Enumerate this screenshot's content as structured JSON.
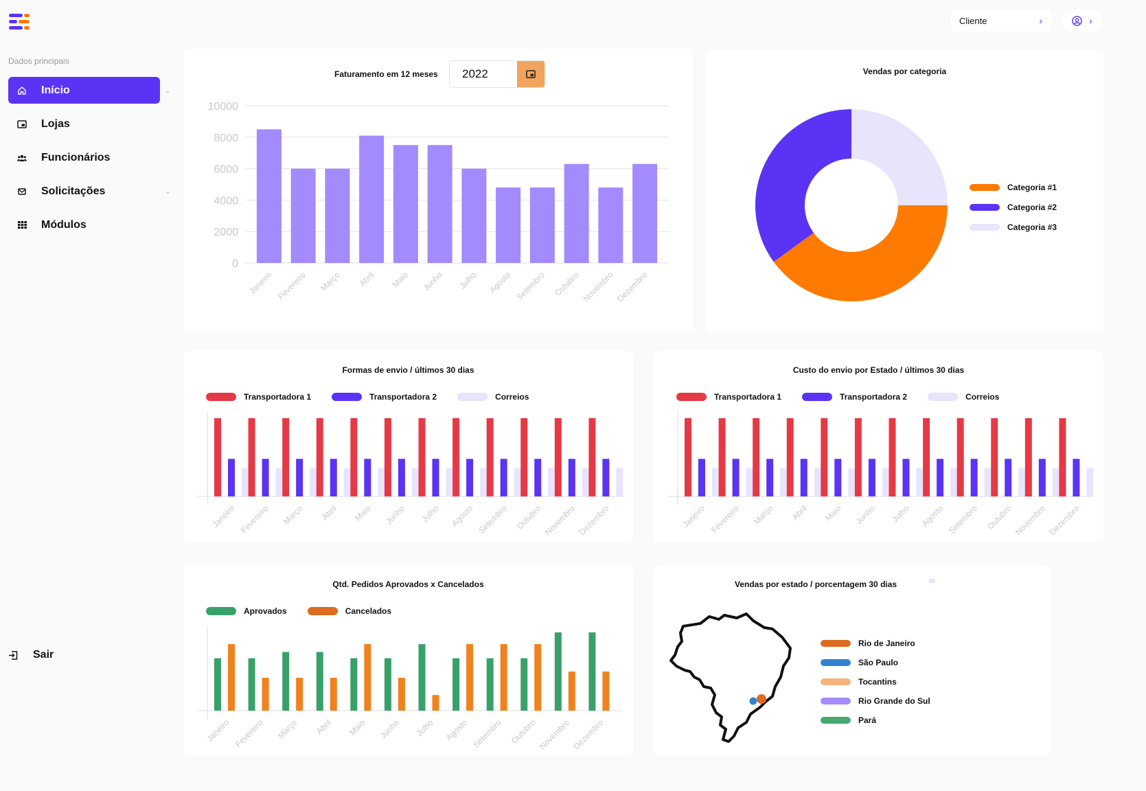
{
  "header": {
    "client_label": "Cliente"
  },
  "sidebar": {
    "section_title": "Dados principais",
    "items": [
      {
        "label": "Início",
        "icon": "home-icon",
        "active": true
      },
      {
        "label": "Lojas",
        "icon": "store-icon"
      },
      {
        "label": "Funcionários",
        "icon": "people-icon"
      },
      {
        "label": "Solicitações",
        "icon": "mail-icon"
      },
      {
        "label": "Módulos",
        "icon": "grid-icon"
      }
    ],
    "logout_label": "Sair"
  },
  "months": [
    "Janeiro",
    "Fevereiro",
    "Março",
    "Abril",
    "Maio",
    "Junho",
    "Julho",
    "Agosto",
    "Setembro",
    "Outubro",
    "Novembro",
    "Dezembro"
  ],
  "revenue": {
    "year": "2022",
    "chart_data": {
      "type": "bar",
      "title": "Faturamento em 12 meses",
      "categories": [
        "Janeiro",
        "Fevereiro",
        "Março",
        "Abril",
        "Maio",
        "Junho",
        "Julho",
        "Agosto",
        "Setembro",
        "Outubro",
        "Novembro",
        "Dezembro"
      ],
      "values": [
        8500,
        6000,
        6000,
        8100,
        7500,
        7500,
        6000,
        4800,
        4800,
        6300,
        4800,
        6300
      ],
      "ylim": [
        0,
        10000
      ],
      "yticks": [
        0,
        2000,
        4000,
        6000,
        8000,
        10000
      ],
      "color": "#a38bfd"
    }
  },
  "category_sales": {
    "chart_data": {
      "type": "pie",
      "title": "Vendas por categoria",
      "labels": [
        "Categoria #1",
        "Categoria #2",
        "Categoria #3"
      ],
      "values": [
        40,
        35,
        25
      ],
      "colors": [
        "#ff7a00",
        "#5b33f5",
        "#e8e4fc"
      ]
    }
  },
  "shipping_methods": {
    "chart_data": {
      "type": "bar",
      "title": "Formas de envio / últimos 30 dias",
      "categories": [
        "Janeiro",
        "Fevereiro",
        "Março",
        "Abril",
        "Maio",
        "Junho",
        "Julho",
        "Agosto",
        "Setembro",
        "Outubro",
        "Novembro",
        "Dezembro"
      ],
      "series": [
        {
          "name": "Transportadora 1",
          "color": "#e63946",
          "values": [
            100,
            100,
            100,
            100,
            100,
            100,
            100,
            100,
            100,
            100,
            100,
            100
          ]
        },
        {
          "name": "Transportadora 2",
          "color": "#5b33f5",
          "values": [
            48,
            48,
            48,
            48,
            48,
            48,
            48,
            48,
            48,
            48,
            48,
            48
          ]
        },
        {
          "name": "Correios",
          "color": "#e8e4fc",
          "values": [
            36,
            36,
            36,
            36,
            36,
            36,
            36,
            36,
            36,
            36,
            36,
            36
          ]
        }
      ],
      "ylim": [
        0,
        100
      ]
    }
  },
  "shipping_cost": {
    "chart_data": {
      "type": "bar",
      "title": "Custo do envio por Estado / últimos 30 dias",
      "categories": [
        "Janeiro",
        "Fevereiro",
        "Março",
        "Abril",
        "Maio",
        "Junho",
        "Julho",
        "Agosto",
        "Setembro",
        "Outubro",
        "Novembro",
        "Dezembro"
      ],
      "series": [
        {
          "name": "Transportadora 1",
          "color": "#e63946",
          "values": [
            100,
            100,
            100,
            100,
            100,
            100,
            100,
            100,
            100,
            100,
            100,
            100
          ]
        },
        {
          "name": "Transportadora 2",
          "color": "#5b33f5",
          "values": [
            48,
            48,
            48,
            48,
            48,
            48,
            48,
            48,
            48,
            48,
            48,
            48
          ]
        },
        {
          "name": "Correios",
          "color": "#e8e4fc",
          "values": [
            36,
            36,
            36,
            36,
            36,
            36,
            36,
            36,
            36,
            36,
            36,
            36
          ]
        }
      ],
      "ylim": [
        0,
        100
      ]
    }
  },
  "orders": {
    "chart_data": {
      "type": "bar",
      "title": "Qtd. Pedidos Aprovados x Cancelados",
      "categories": [
        "Janeiro",
        "Fevereiro",
        "Março",
        "Abril",
        "Maio",
        "Junho",
        "Julho",
        "Agosto",
        "Setembro",
        "Outubro",
        "Novembro",
        "Dezembro"
      ],
      "series": [
        {
          "name": "Aprovados",
          "color": "#38a169",
          "values": [
            67,
            67,
            75,
            75,
            67,
            67,
            85,
            67,
            67,
            67,
            100,
            100
          ]
        },
        {
          "name": "Cancelados",
          "color": "#f0821e",
          "values": [
            85,
            42,
            42,
            42,
            85,
            42,
            20,
            85,
            85,
            85,
            50,
            50
          ]
        }
      ],
      "ylim": [
        0,
        100
      ]
    }
  },
  "state_sales": {
    "title": "Vendas por estado / porcentagem 30 dias",
    "legend": [
      {
        "name": "Rio de Janeiro",
        "color": "#dd6b20"
      },
      {
        "name": "São Paulo",
        "color": "#3182ce"
      },
      {
        "name": "Tocantins",
        "color": "#f6b37f"
      },
      {
        "name": "Rio Grande do Sul",
        "color": "#a38bfd"
      },
      {
        "name": "Pará",
        "color": "#48a870"
      }
    ]
  }
}
